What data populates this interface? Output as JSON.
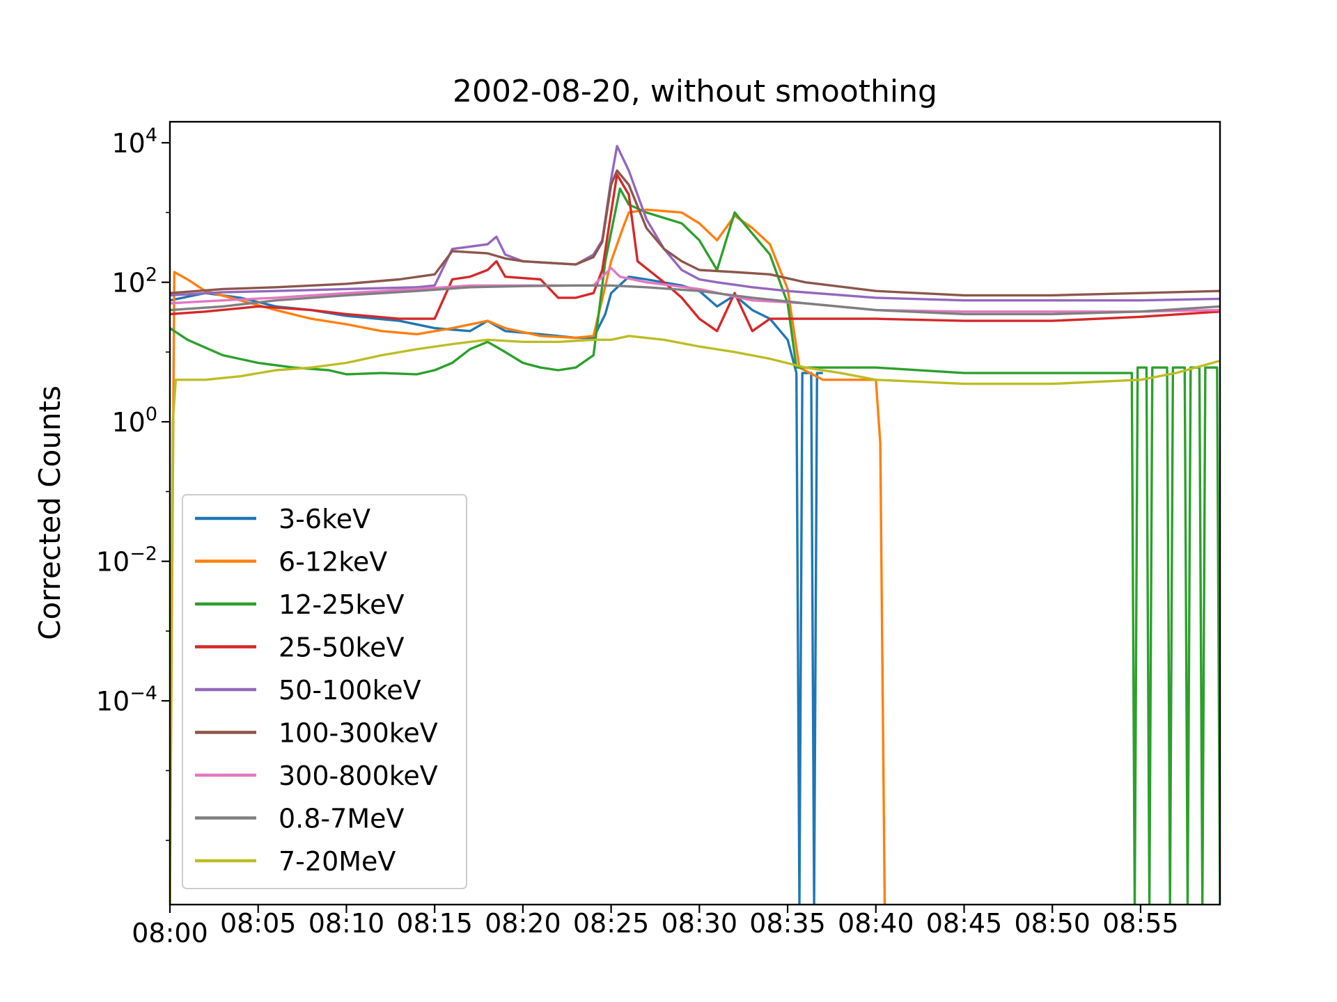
{
  "chart_data": {
    "type": "line",
    "title": "2002-08-20, without smoothing",
    "xlabel": "",
    "ylabel": "Corrected Counts",
    "y_scale": "log",
    "xlim": [
      "08:00",
      "08:59:30"
    ],
    "ylim": [
      1.2e-07,
      20000
    ],
    "x_ticks": [
      "08:00",
      "08:05",
      "08:10",
      "08:15",
      "08:20",
      "08:25",
      "08:30",
      "08:35",
      "08:40",
      "08:45",
      "08:50",
      "08:55"
    ],
    "y_ticks": [
      {
        "value": 0.0001,
        "base": "10",
        "exp": "−4"
      },
      {
        "value": 0.01,
        "base": "10",
        "exp": "−2"
      },
      {
        "value": 1,
        "base": "10",
        "exp": "0"
      },
      {
        "value": 100,
        "base": "10",
        "exp": "2"
      },
      {
        "value": 10000,
        "base": "10",
        "exp": "4"
      }
    ],
    "grid": false,
    "legend_position": "lower-left",
    "series": [
      {
        "name": "3-6keV",
        "color": "#1f77b4",
        "points": [
          [
            "08:00",
            55
          ],
          [
            "08:02",
            70
          ],
          [
            "08:04",
            60
          ],
          [
            "08:06",
            45
          ],
          [
            "08:08",
            40
          ],
          [
            "08:10",
            33
          ],
          [
            "08:13",
            28
          ],
          [
            "08:15",
            22
          ],
          [
            "08:17",
            20
          ],
          [
            "08:18",
            28
          ],
          [
            "08:19",
            20
          ],
          [
            "08:21",
            18
          ],
          [
            "08:23",
            16
          ],
          [
            "08:24",
            16
          ],
          [
            "08:24:40",
            35
          ],
          [
            "08:25",
            70
          ],
          [
            "08:26",
            120
          ],
          [
            "08:27",
            110
          ],
          [
            "08:29",
            90
          ],
          [
            "08:30",
            75
          ],
          [
            "08:31",
            45
          ],
          [
            "08:32",
            65
          ],
          [
            "08:33",
            40
          ],
          [
            "08:34",
            30
          ],
          [
            "08:35",
            15
          ],
          [
            "08:35:30",
            5
          ],
          [
            "08:35:40",
            1.2e-07
          ],
          [
            "08:35:50",
            5
          ],
          [
            "08:36:20",
            5
          ],
          [
            "08:36:30",
            1.2e-07
          ],
          [
            "08:36:40",
            5
          ],
          [
            "08:37",
            5
          ]
        ]
      },
      {
        "name": "6-12keV",
        "color": "#ff7f0e",
        "points": [
          [
            "08:00",
            1.2e-07
          ],
          [
            "08:00:15",
            140
          ],
          [
            "08:01",
            110
          ],
          [
            "08:02",
            75
          ],
          [
            "08:04",
            55
          ],
          [
            "08:06",
            40
          ],
          [
            "08:08",
            30
          ],
          [
            "08:10",
            25
          ],
          [
            "08:12",
            20
          ],
          [
            "08:14",
            18
          ],
          [
            "08:16",
            22
          ],
          [
            "08:18",
            28
          ],
          [
            "08:19",
            22
          ],
          [
            "08:21",
            17
          ],
          [
            "08:23",
            16
          ],
          [
            "08:24",
            17
          ],
          [
            "08:25",
            200
          ],
          [
            "08:25:40",
            600
          ],
          [
            "08:26",
            1000
          ],
          [
            "08:27",
            1100
          ],
          [
            "08:28",
            1050
          ],
          [
            "08:29",
            1000
          ],
          [
            "08:30",
            700
          ],
          [
            "08:31",
            400
          ],
          [
            "08:32",
            900
          ],
          [
            "08:33",
            600
          ],
          [
            "08:34",
            350
          ],
          [
            "08:35",
            80
          ],
          [
            "08:35:40",
            6
          ],
          [
            "08:37",
            4
          ],
          [
            "08:39",
            4
          ],
          [
            "08:40",
            4
          ],
          [
            "08:40:15",
            0.5
          ],
          [
            "08:40:30",
            1.2e-07
          ]
        ]
      },
      {
        "name": "12-25keV",
        "color": "#2ca02c",
        "points": [
          [
            "08:00",
            22
          ],
          [
            "08:01",
            15
          ],
          [
            "08:03",
            9
          ],
          [
            "08:05",
            7
          ],
          [
            "08:07",
            6
          ],
          [
            "08:09",
            5.5
          ],
          [
            "08:10",
            4.8
          ],
          [
            "08:12",
            5
          ],
          [
            "08:14",
            4.8
          ],
          [
            "08:15",
            5.5
          ],
          [
            "08:16",
            7
          ],
          [
            "08:17",
            11
          ],
          [
            "08:18",
            14
          ],
          [
            "08:19",
            10
          ],
          [
            "08:20",
            7
          ],
          [
            "08:21",
            6
          ],
          [
            "08:22",
            5.5
          ],
          [
            "08:23",
            6
          ],
          [
            "08:24",
            9
          ],
          [
            "08:24:40",
            200
          ],
          [
            "08:25:30",
            2200
          ],
          [
            "08:26",
            1300
          ],
          [
            "08:27",
            1000
          ],
          [
            "08:29",
            700
          ],
          [
            "08:30",
            400
          ],
          [
            "08:31",
            150
          ],
          [
            "08:32",
            1000
          ],
          [
            "08:33",
            500
          ],
          [
            "08:34",
            250
          ],
          [
            "08:35",
            50
          ],
          [
            "08:35:30",
            6
          ],
          [
            "08:40",
            6
          ],
          [
            "08:45",
            5
          ],
          [
            "08:50",
            5
          ],
          [
            "08:54:30",
            5
          ],
          [
            "08:54:40",
            1.2e-07
          ],
          [
            "08:54:50",
            6
          ],
          [
            "08:55:20",
            6
          ],
          [
            "08:55:30",
            1.2e-07
          ],
          [
            "08:55:40",
            6
          ],
          [
            "08:56:30",
            6
          ],
          [
            "08:56:40",
            1.2e-07
          ],
          [
            "08:56:50",
            6
          ],
          [
            "08:57:30",
            6
          ],
          [
            "08:57:40",
            1.2e-07
          ],
          [
            "08:57:50",
            6
          ],
          [
            "08:58:20",
            6
          ],
          [
            "08:58:30",
            1.2e-07
          ],
          [
            "08:58:40",
            6
          ],
          [
            "08:59:20",
            6
          ],
          [
            "08:59:30",
            1.2e-07
          ]
        ]
      },
      {
        "name": "25-50keV",
        "color": "#d62728",
        "points": [
          [
            "08:00",
            35
          ],
          [
            "08:02",
            38
          ],
          [
            "08:05",
            45
          ],
          [
            "08:08",
            40
          ],
          [
            "08:10",
            35
          ],
          [
            "08:13",
            30
          ],
          [
            "08:15",
            30
          ],
          [
            "08:16",
            110
          ],
          [
            "08:17",
            120
          ],
          [
            "08:18",
            150
          ],
          [
            "08:18:30",
            200
          ],
          [
            "08:19",
            120
          ],
          [
            "08:21",
            110
          ],
          [
            "08:22",
            60
          ],
          [
            "08:23",
            60
          ],
          [
            "08:24",
            70
          ],
          [
            "08:24:30",
            150
          ],
          [
            "08:25",
            1000
          ],
          [
            "08:25:20",
            3500
          ],
          [
            "08:26",
            1800
          ],
          [
            "08:26:30",
            200
          ],
          [
            "08:28",
            100
          ],
          [
            "08:29",
            60
          ],
          [
            "08:30",
            30
          ],
          [
            "08:31",
            20
          ],
          [
            "08:32",
            70
          ],
          [
            "08:33",
            20
          ],
          [
            "08:34",
            30
          ],
          [
            "08:36",
            30
          ],
          [
            "08:40",
            30
          ],
          [
            "08:45",
            28
          ],
          [
            "08:50",
            28
          ],
          [
            "08:55",
            32
          ],
          [
            "08:59:30",
            38
          ]
        ]
      },
      {
        "name": "50-100keV",
        "color": "#9467bd",
        "points": [
          [
            "08:00",
            65
          ],
          [
            "08:03",
            72
          ],
          [
            "08:06",
            75
          ],
          [
            "08:10",
            80
          ],
          [
            "08:14",
            85
          ],
          [
            "08:15",
            90
          ],
          [
            "08:16",
            300
          ],
          [
            "08:18",
            350
          ],
          [
            "08:18:30",
            450
          ],
          [
            "08:19",
            250
          ],
          [
            "08:20",
            200
          ],
          [
            "08:23",
            180
          ],
          [
            "08:24",
            250
          ],
          [
            "08:24:30",
            400
          ],
          [
            "08:25",
            3000
          ],
          [
            "08:25:20",
            9000
          ],
          [
            "08:26",
            4000
          ],
          [
            "08:27",
            800
          ],
          [
            "08:28",
            300
          ],
          [
            "08:29",
            150
          ],
          [
            "08:30",
            110
          ],
          [
            "08:31",
            100
          ],
          [
            "08:33",
            85
          ],
          [
            "08:35",
            75
          ],
          [
            "08:40",
            60
          ],
          [
            "08:45",
            55
          ],
          [
            "08:50",
            55
          ],
          [
            "08:55",
            55
          ],
          [
            "08:59:30",
            58
          ]
        ]
      },
      {
        "name": "100-300keV",
        "color": "#8c564b",
        "points": [
          [
            "08:00",
            70
          ],
          [
            "08:03",
            80
          ],
          [
            "08:06",
            85
          ],
          [
            "08:10",
            95
          ],
          [
            "08:13",
            110
          ],
          [
            "08:15",
            130
          ],
          [
            "08:16",
            280
          ],
          [
            "08:18",
            260
          ],
          [
            "08:19",
            220
          ],
          [
            "08:20",
            200
          ],
          [
            "08:23",
            180
          ],
          [
            "08:24",
            230
          ],
          [
            "08:24:30",
            380
          ],
          [
            "08:25",
            2500
          ],
          [
            "08:25:20",
            4000
          ],
          [
            "08:26",
            2500
          ],
          [
            "08:27",
            600
          ],
          [
            "08:28",
            300
          ],
          [
            "08:29",
            200
          ],
          [
            "08:30",
            150
          ],
          [
            "08:32",
            140
          ],
          [
            "08:34",
            130
          ],
          [
            "08:36",
            100
          ],
          [
            "08:40",
            75
          ],
          [
            "08:45",
            65
          ],
          [
            "08:50",
            65
          ],
          [
            "08:55",
            70
          ],
          [
            "08:59:30",
            75
          ]
        ]
      },
      {
        "name": "300-800keV",
        "color": "#e377c2",
        "points": [
          [
            "08:00",
            50
          ],
          [
            "08:03",
            55
          ],
          [
            "08:06",
            60
          ],
          [
            "08:10",
            70
          ],
          [
            "08:14",
            80
          ],
          [
            "08:17",
            90
          ],
          [
            "08:20",
            90
          ],
          [
            "08:23",
            90
          ],
          [
            "08:24",
            90
          ],
          [
            "08:25",
            160
          ],
          [
            "08:25:30",
            120
          ],
          [
            "08:27",
            100
          ],
          [
            "08:30",
            80
          ],
          [
            "08:33",
            55
          ],
          [
            "08:36",
            50
          ],
          [
            "08:40",
            40
          ],
          [
            "08:45",
            38
          ],
          [
            "08:50",
            38
          ],
          [
            "08:55",
            38
          ],
          [
            "08:59:30",
            40
          ]
        ]
      },
      {
        "name": "0.8-7MeV",
        "color": "#7f7f7f",
        "points": [
          [
            "08:00",
            40
          ],
          [
            "08:03",
            45
          ],
          [
            "08:06",
            55
          ],
          [
            "08:10",
            65
          ],
          [
            "08:14",
            75
          ],
          [
            "08:17",
            85
          ],
          [
            "08:20",
            88
          ],
          [
            "08:23",
            90
          ],
          [
            "08:25",
            90
          ],
          [
            "08:27",
            85
          ],
          [
            "08:30",
            75
          ],
          [
            "08:33",
            60
          ],
          [
            "08:36",
            50
          ],
          [
            "08:40",
            40
          ],
          [
            "08:45",
            35
          ],
          [
            "08:50",
            35
          ],
          [
            "08:55",
            38
          ],
          [
            "08:59:30",
            45
          ]
        ]
      },
      {
        "name": "7-20MeV",
        "color": "#bcbd22",
        "points": [
          [
            "08:00",
            1.2e-07
          ],
          [
            "08:00:10",
            1
          ],
          [
            "08:00:20",
            4
          ],
          [
            "08:02",
            4
          ],
          [
            "08:04",
            4.5
          ],
          [
            "08:06",
            5.5
          ],
          [
            "08:08",
            6
          ],
          [
            "08:10",
            7
          ],
          [
            "08:12",
            9
          ],
          [
            "08:14",
            11
          ],
          [
            "08:16",
            13
          ],
          [
            "08:18",
            15
          ],
          [
            "08:20",
            14
          ],
          [
            "08:22",
            14
          ],
          [
            "08:24",
            15
          ],
          [
            "08:25",
            15
          ],
          [
            "08:26",
            17
          ],
          [
            "08:28",
            15
          ],
          [
            "08:30",
            12
          ],
          [
            "08:32",
            10
          ],
          [
            "08:34",
            8
          ],
          [
            "08:36",
            6
          ],
          [
            "08:38",
            5
          ],
          [
            "08:40",
            4
          ],
          [
            "08:45",
            3.5
          ],
          [
            "08:50",
            3.5
          ],
          [
            "08:55",
            4
          ],
          [
            "08:57",
            5
          ],
          [
            "08:59:30",
            7.5
          ]
        ]
      }
    ]
  }
}
